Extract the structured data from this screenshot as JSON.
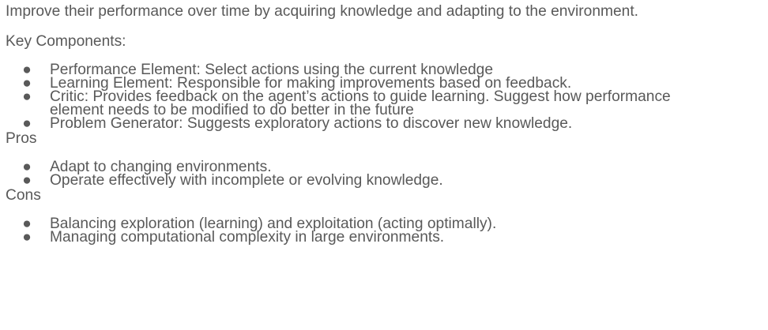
{
  "intro": "Improve their performance over time by acquiring knowledge and adapting to the environment.",
  "key_components": {
    "heading": "Key Components:",
    "items": [
      {
        "lines": [
          "Performance Element: Select actions using the current knowledge"
        ]
      },
      {
        "lines": [
          "Learning Element: Responsible for making improvements based on feedback."
        ]
      },
      {
        "lines": [
          "Critic: Provides feedback on the agent’s actions to guide learning. Suggest how performance",
          "element needs to be modified to do better in the future"
        ]
      },
      {
        "lines": [
          "Problem Generator: Suggests exploratory actions to discover new knowledge."
        ]
      }
    ]
  },
  "pros": {
    "heading": "Pros",
    "items": [
      {
        "lines": [
          "Adapt to changing environments."
        ]
      },
      {
        "lines": [
          "Operate effectively with incomplete or evolving knowledge."
        ]
      }
    ]
  },
  "cons": {
    "heading": "Cons",
    "items": [
      {
        "lines": [
          "Balancing exploration (learning) and exploitation (acting optimally)."
        ]
      },
      {
        "lines": [
          "Managing computational complexity in large environments."
        ]
      }
    ]
  },
  "bullet_glyph": "●"
}
